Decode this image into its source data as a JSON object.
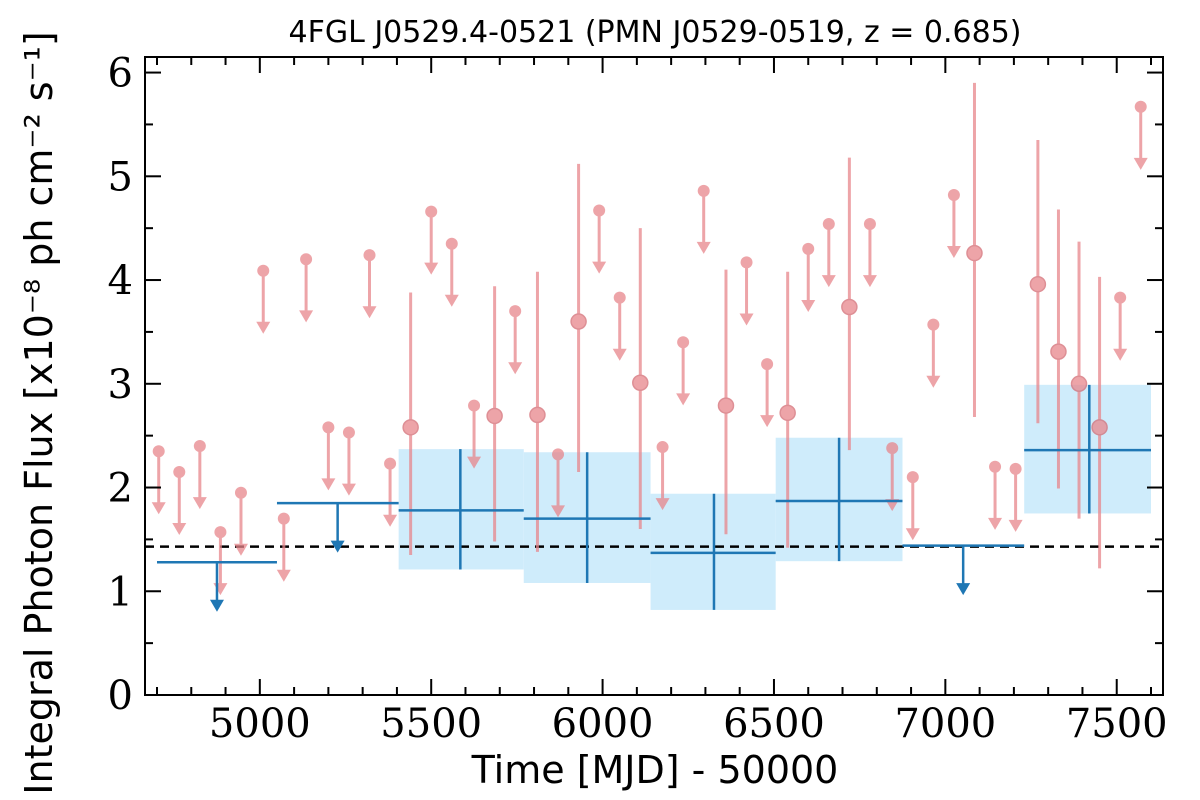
{
  "chart_data": {
    "type": "scatter",
    "title": "4FGL J0529.4-0521 (PMN J0529-0519, z = 0.685)",
    "xlabel": "Time [MJD] - 50000",
    "ylabel": "Integral Photon Flux [x10⁻⁸ ph cm⁻² s⁻¹]",
    "xlim": [
      4665,
      7635
    ],
    "ylim": [
      0,
      6.15
    ],
    "xticks": [
      "5000",
      "5500",
      "6000",
      "6500",
      "7000",
      "7500"
    ],
    "yticks": [
      "0",
      "1",
      "2",
      "3",
      "4",
      "5",
      "6"
    ],
    "grid": false,
    "reference_level": 1.43,
    "colors": {
      "short_bins": "#e8868c",
      "long_bins": "#1f77b4",
      "long_bins_band": "#cfecfb",
      "reference_line": "#000000"
    },
    "short_bins": {
      "upper_limits": [
        {
          "x": 4705,
          "y": 2.35
        },
        {
          "x": 4765,
          "y": 2.15
        },
        {
          "x": 4825,
          "y": 2.4
        },
        {
          "x": 4885,
          "y": 1.57
        },
        {
          "x": 4945,
          "y": 1.95
        },
        {
          "x": 5010,
          "y": 4.09
        },
        {
          "x": 5070,
          "y": 1.7
        },
        {
          "x": 5135,
          "y": 4.2
        },
        {
          "x": 5200,
          "y": 2.58
        },
        {
          "x": 5260,
          "y": 2.53
        },
        {
          "x": 5320,
          "y": 4.24
        },
        {
          "x": 5380,
          "y": 2.23
        },
        {
          "x": 5500,
          "y": 4.66
        },
        {
          "x": 5560,
          "y": 4.35
        },
        {
          "x": 5625,
          "y": 2.79
        },
        {
          "x": 5745,
          "y": 3.7
        },
        {
          "x": 5870,
          "y": 2.32
        },
        {
          "x": 5990,
          "y": 4.67
        },
        {
          "x": 6050,
          "y": 3.83
        },
        {
          "x": 6175,
          "y": 2.39
        },
        {
          "x": 6235,
          "y": 3.4
        },
        {
          "x": 6295,
          "y": 4.86
        },
        {
          "x": 6420,
          "y": 4.17
        },
        {
          "x": 6480,
          "y": 3.19
        },
        {
          "x": 6600,
          "y": 4.3
        },
        {
          "x": 6660,
          "y": 4.54
        },
        {
          "x": 6780,
          "y": 4.54
        },
        {
          "x": 6845,
          "y": 2.38
        },
        {
          "x": 6905,
          "y": 2.1
        },
        {
          "x": 6965,
          "y": 3.57
        },
        {
          "x": 7025,
          "y": 4.82
        },
        {
          "x": 7145,
          "y": 2.2
        },
        {
          "x": 7205,
          "y": 2.18
        },
        {
          "x": 7510,
          "y": 3.83
        },
        {
          "x": 7570,
          "y": 5.67
        }
      ],
      "detections": [
        {
          "x": 5440,
          "y": 2.58,
          "err_low": 1.35,
          "err_high": 3.88
        },
        {
          "x": 5685,
          "y": 2.69,
          "err_low": 1.48,
          "err_high": 3.94
        },
        {
          "x": 5810,
          "y": 2.7,
          "err_low": 1.38,
          "err_high": 4.08
        },
        {
          "x": 5930,
          "y": 3.6,
          "err_low": 2.15,
          "err_high": 5.12
        },
        {
          "x": 6110,
          "y": 3.01,
          "err_low": 1.6,
          "err_high": 4.5
        },
        {
          "x": 6360,
          "y": 2.79,
          "err_low": 1.55,
          "err_high": 4.1
        },
        {
          "x": 6540,
          "y": 2.72,
          "err_low": 1.42,
          "err_high": 4.08
        },
        {
          "x": 6720,
          "y": 3.74,
          "err_low": 2.36,
          "err_high": 5.18
        },
        {
          "x": 7085,
          "y": 4.26,
          "err_low": 2.68,
          "err_high": 5.9
        },
        {
          "x": 7270,
          "y": 3.96,
          "err_low": 2.62,
          "err_high": 5.35
        },
        {
          "x": 7330,
          "y": 3.31,
          "err_low": 1.99,
          "err_high": 4.68
        },
        {
          "x": 7390,
          "y": 3.0,
          "err_low": 1.7,
          "err_high": 4.37
        },
        {
          "x": 7450,
          "y": 2.58,
          "err_low": 1.22,
          "err_high": 4.03
        }
      ]
    },
    "long_bins": {
      "upper_limits": [
        {
          "x_start": 4700,
          "x_end": 5050,
          "x": 4875,
          "y": 1.28
        },
        {
          "x_start": 5050,
          "x_end": 5405,
          "x": 5227,
          "y": 1.85
        },
        {
          "x_start": 6875,
          "x_end": 7230,
          "x": 7052,
          "y": 1.44
        }
      ],
      "detections": [
        {
          "x_start": 5405,
          "x_end": 5770,
          "x": 5585,
          "y": 1.78,
          "err_low": 1.21,
          "err_high": 2.37
        },
        {
          "x_start": 5770,
          "x_end": 6140,
          "x": 5955,
          "y": 1.7,
          "err_low": 1.08,
          "err_high": 2.34
        },
        {
          "x_start": 6140,
          "x_end": 6505,
          "x": 6325,
          "y": 1.37,
          "err_low": 0.82,
          "err_high": 1.94
        },
        {
          "x_start": 6505,
          "x_end": 6875,
          "x": 6690,
          "y": 1.87,
          "err_low": 1.29,
          "err_high": 2.48
        },
        {
          "x_start": 7230,
          "x_end": 7600,
          "x": 7420,
          "y": 2.36,
          "err_low": 1.75,
          "err_high": 2.99
        }
      ]
    }
  }
}
